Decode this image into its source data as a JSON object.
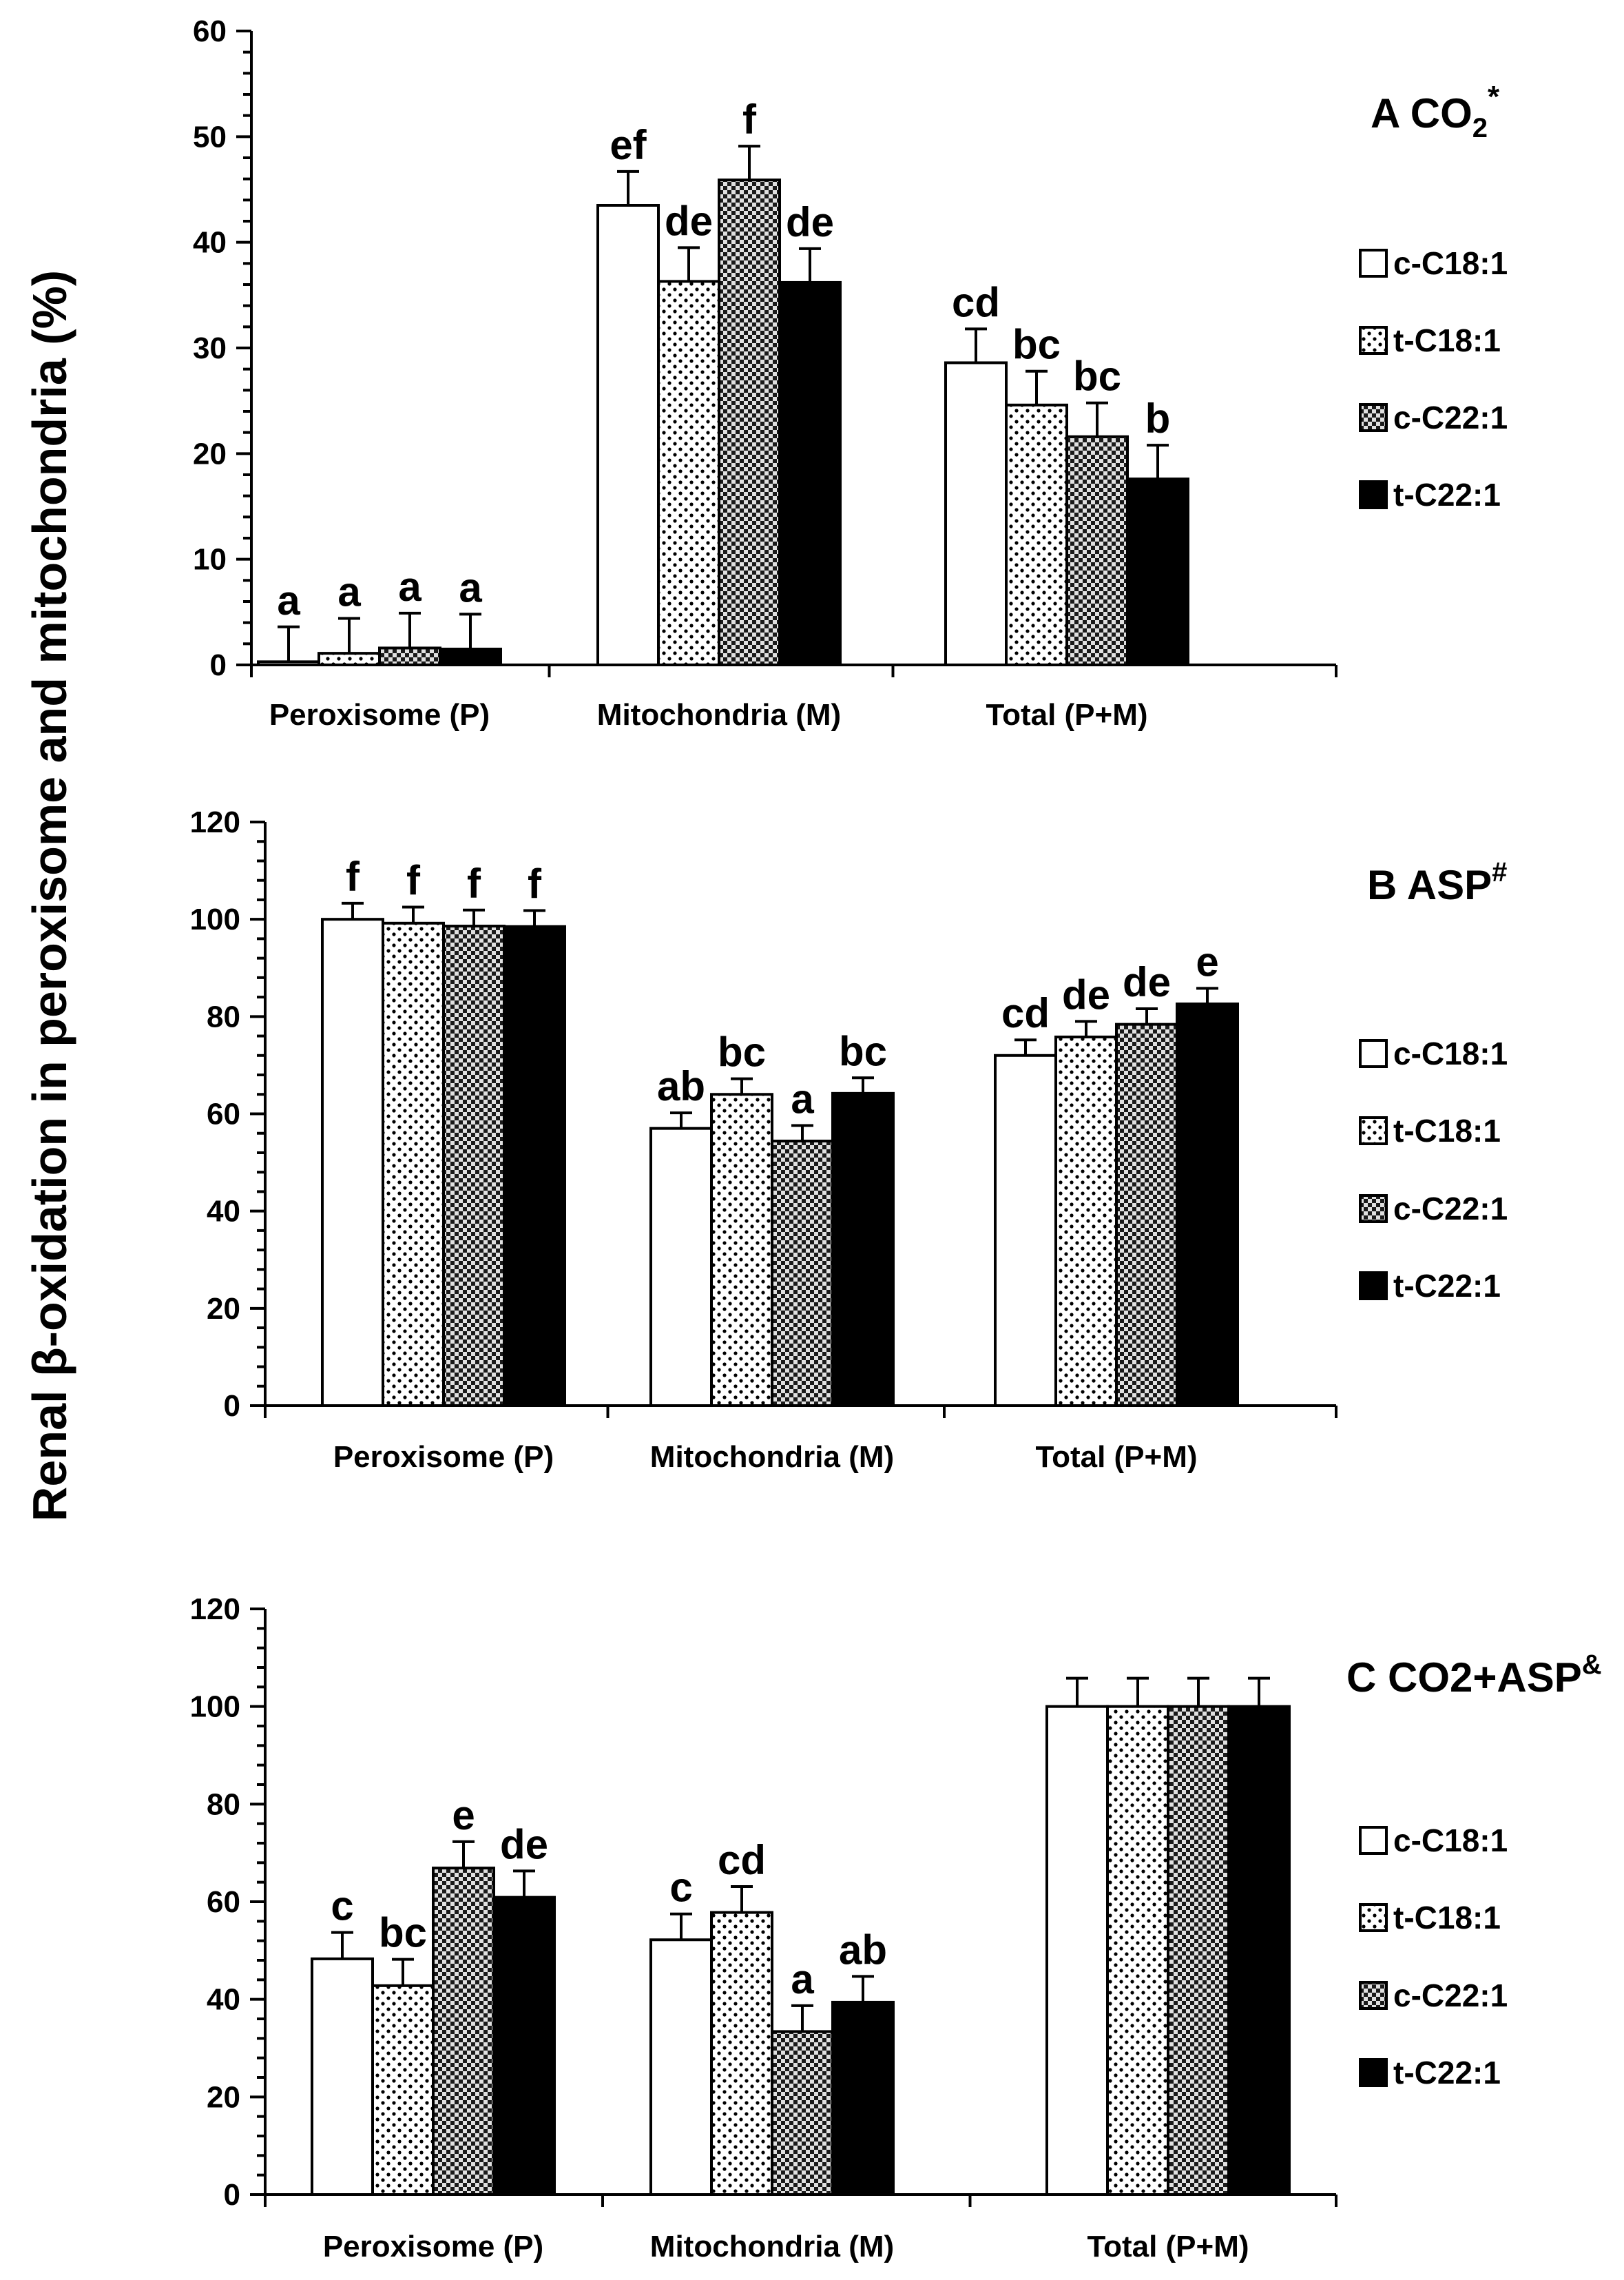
{
  "ylabel": "Renal β-oxidation in peroxisome and mitochondria (%)",
  "legend": [
    {
      "label": "c-C18:1",
      "pattern": "white"
    },
    {
      "label": "t-C18:1",
      "pattern": "dots"
    },
    {
      "label": "c-C22:1",
      "pattern": "checker"
    },
    {
      "label": "t-C22:1",
      "pattern": "black"
    }
  ],
  "chart_data": [
    {
      "type": "bar",
      "title": "A CO",
      "title_sub": "2",
      "title_sup": "*",
      "ylim": [
        0,
        60
      ],
      "yticks": [
        0,
        10,
        20,
        30,
        40,
        50,
        60
      ],
      "minor_step": 2,
      "categories": [
        "Peroxisome (P)",
        "Mitochondria (M)",
        "Total (P+M)"
      ],
      "series": [
        {
          "name": "c-C18:1",
          "values": [
            0.3,
            43.5,
            28.6
          ],
          "errors": [
            3.3,
            3.2,
            3.2
          ],
          "labels": [
            "a",
            "ef",
            "cd"
          ]
        },
        {
          "name": "t-C18:1",
          "values": [
            1.1,
            36.3,
            24.6
          ],
          "errors": [
            3.3,
            3.2,
            3.2
          ],
          "labels": [
            "a",
            "de",
            "bc"
          ]
        },
        {
          "name": "c-C22:1",
          "values": [
            1.6,
            45.9,
            21.6
          ],
          "errors": [
            3.3,
            3.2,
            3.2
          ],
          "labels": [
            "a",
            "f",
            "bc"
          ]
        },
        {
          "name": "t-C22:1",
          "values": [
            1.5,
            36.2,
            17.6
          ],
          "errors": [
            3.3,
            3.2,
            3.2
          ],
          "labels": [
            "a",
            "de",
            "b"
          ]
        }
      ]
    },
    {
      "type": "bar",
      "title": "B ASP",
      "title_sub": "",
      "title_sup": "#",
      "ylim": [
        0,
        120
      ],
      "yticks": [
        0,
        20,
        40,
        60,
        80,
        100,
        120
      ],
      "minor_step": 4,
      "categories": [
        "Peroxisome (P)",
        "Mitochondria (M)",
        "Total (P+M)"
      ],
      "series": [
        {
          "name": "c-C18:1",
          "values": [
            100,
            57,
            72
          ],
          "errors": [
            3.3,
            3.2,
            3.2
          ],
          "labels": [
            "f",
            "ab",
            "cd"
          ]
        },
        {
          "name": "t-C18:1",
          "values": [
            99.2,
            64,
            75.8
          ],
          "errors": [
            3.3,
            3.2,
            3.2
          ],
          "labels": [
            "f",
            "bc",
            "de"
          ]
        },
        {
          "name": "c-C22:1",
          "values": [
            98.6,
            54.4,
            78.4
          ],
          "errors": [
            3.3,
            3.2,
            3.2
          ],
          "labels": [
            "f",
            "a",
            "de"
          ]
        },
        {
          "name": "t-C22:1",
          "values": [
            98.5,
            64.2,
            82.6
          ],
          "errors": [
            3.3,
            3.2,
            3.2
          ],
          "labels": [
            "f",
            "bc",
            "e"
          ]
        }
      ]
    },
    {
      "type": "bar",
      "title": "C CO2+ASP",
      "title_sub": "",
      "title_sup": "&",
      "ylim": [
        0,
        120
      ],
      "yticks": [
        0,
        20,
        40,
        60,
        80,
        100,
        120
      ],
      "minor_step": 4,
      "categories": [
        "Peroxisome (P)",
        "Mitochondria (M)",
        "Total (P+M)"
      ],
      "series": [
        {
          "name": "c-C18:1",
          "values": [
            48.3,
            52.2,
            100
          ],
          "errors": [
            5.4,
            5.3,
            5.8
          ],
          "labels": [
            "c",
            "c",
            ""
          ]
        },
        {
          "name": "t-C18:1",
          "values": [
            42.8,
            57.8,
            100
          ],
          "errors": [
            5.4,
            5.3,
            5.8
          ],
          "labels": [
            "bc",
            "cd",
            ""
          ]
        },
        {
          "name": "c-C22:1",
          "values": [
            66.9,
            33.4,
            100
          ],
          "errors": [
            5.4,
            5.3,
            5.8
          ],
          "labels": [
            "e",
            "a",
            ""
          ]
        },
        {
          "name": "t-C22:1",
          "values": [
            60.9,
            39.4,
            100
          ],
          "errors": [
            5.4,
            5.3,
            5.8
          ],
          "labels": [
            "de",
            "ab",
            ""
          ]
        }
      ]
    }
  ]
}
